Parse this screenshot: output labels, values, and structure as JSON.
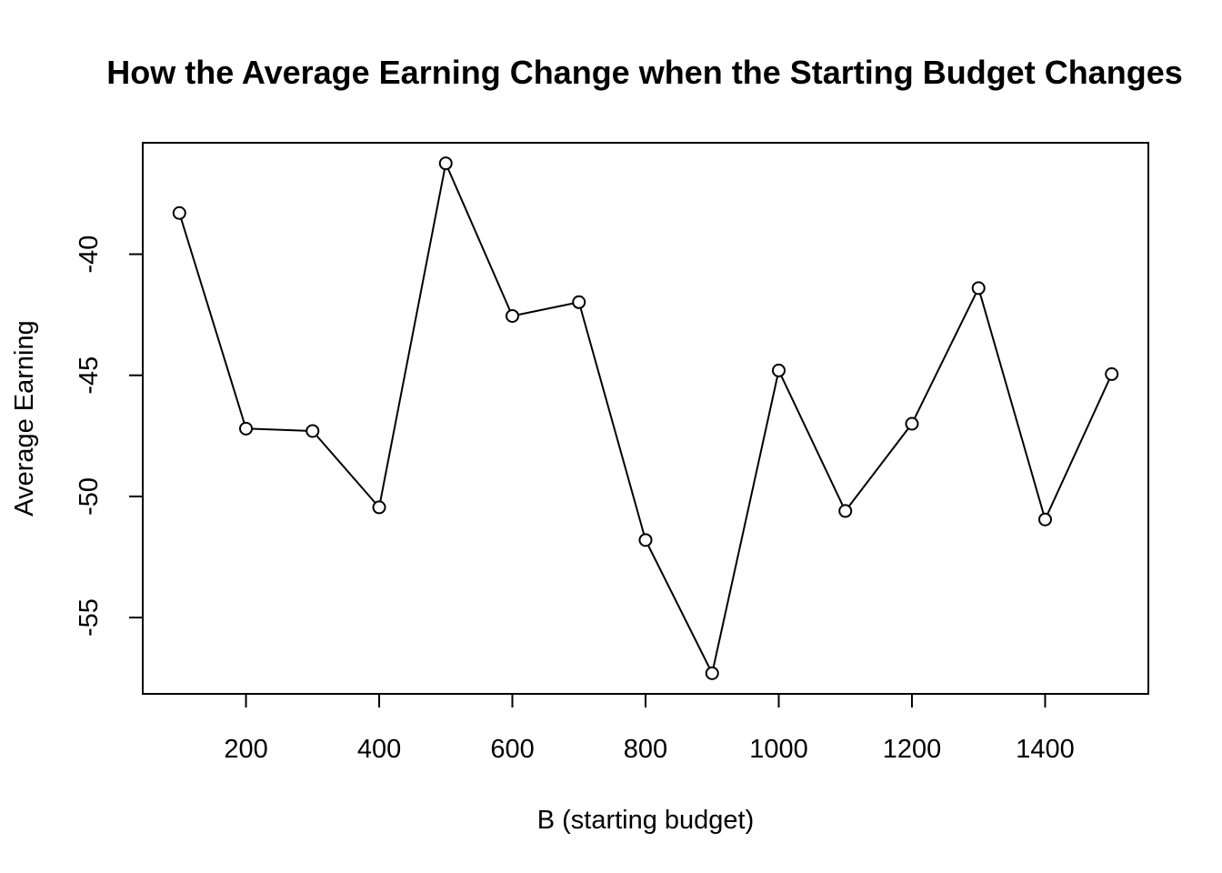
{
  "chart_data": {
    "type": "line",
    "title": "How the Average Earning Change when the Starting Budget Changes",
    "xlabel": "B (starting budget)",
    "ylabel": "Average Earning",
    "x": [
      100,
      200,
      300,
      400,
      500,
      600,
      700,
      800,
      900,
      1000,
      1100,
      1200,
      1300,
      1400,
      1500
    ],
    "series": [
      {
        "values": [
          -38.3,
          -47.2,
          -47.3,
          -50.45,
          -36.25,
          -42.55,
          -41.98,
          -51.8,
          -57.3,
          -44.8,
          -50.6,
          -47.0,
          -41.4,
          -50.95,
          -44.95
        ]
      }
    ],
    "xlim": [
      45,
      1555
    ],
    "ylim": [
      -58.15,
      -35.4
    ],
    "x_ticks": [
      200,
      400,
      600,
      800,
      1000,
      1200,
      1400
    ],
    "y_ticks": [
      -40,
      -45,
      -50,
      -55
    ],
    "marker": "open-circle",
    "line_color": "#000000",
    "grid": false,
    "legend": "none"
  }
}
